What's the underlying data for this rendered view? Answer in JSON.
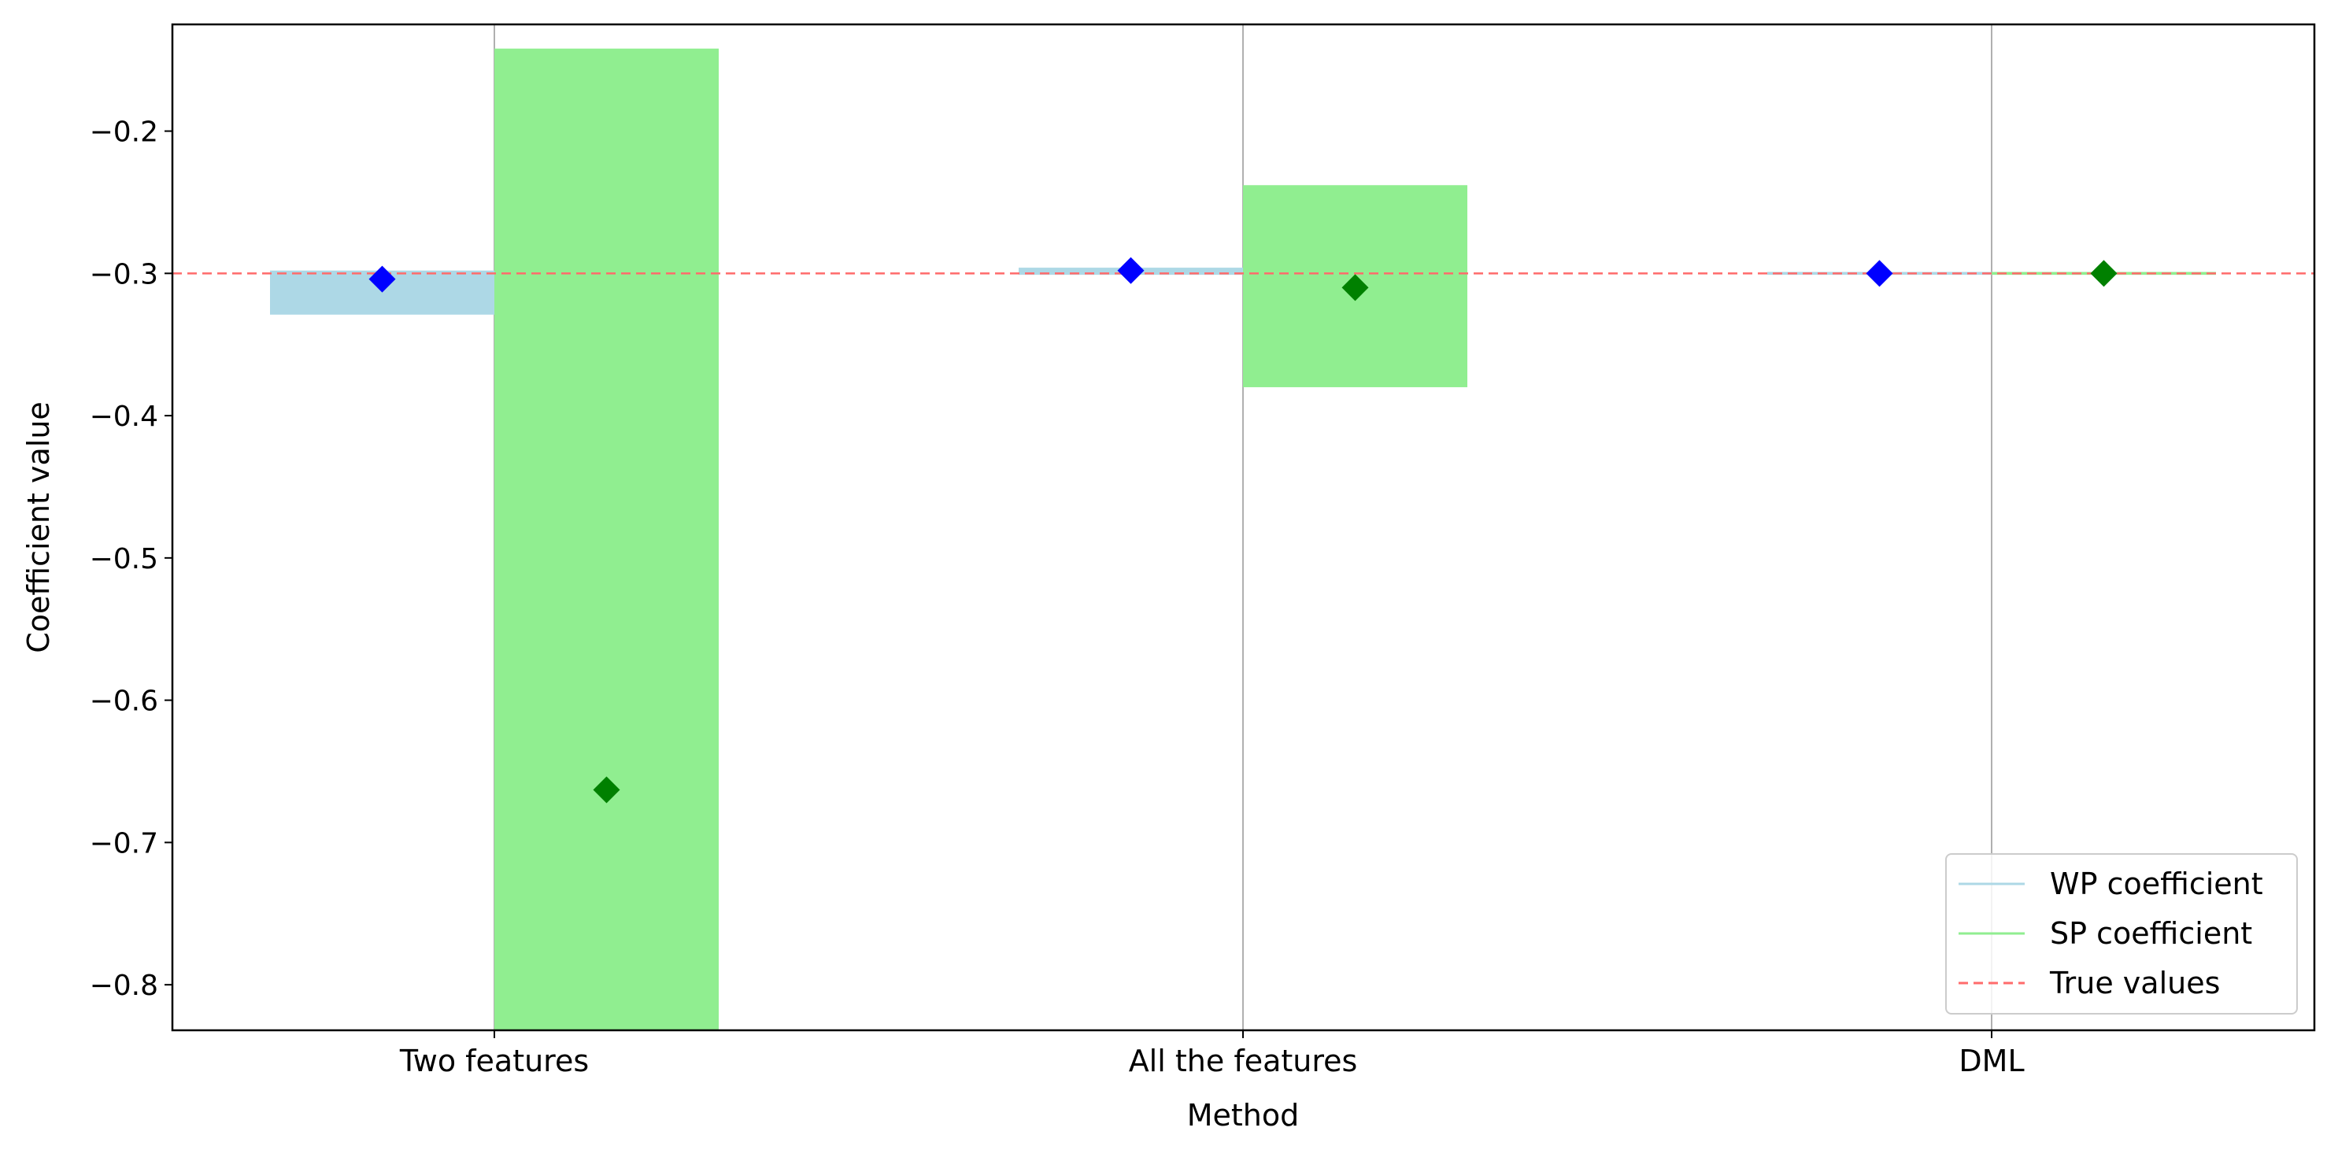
{
  "chart_data": {
    "type": "bar",
    "title": "",
    "xlabel": "Method",
    "ylabel": "Coefficient value",
    "categories": [
      "Two features",
      "All the features",
      "DML"
    ],
    "ylim": [
      -0.832,
      -0.125
    ],
    "yticks": [
      -0.2,
      -0.3,
      -0.4,
      -0.5,
      -0.6,
      -0.7,
      -0.8
    ],
    "ytick_labels": [
      "−0.2",
      "−0.3",
      "−0.4",
      "−0.5",
      "−0.6",
      "−0.7",
      "−0.8"
    ],
    "grid": "x-only",
    "true_value": -0.3,
    "series": [
      {
        "name": "WP coefficient",
        "bar_color": "#add8e6",
        "marker_color": "#0000ff",
        "intervals": [
          [
            -0.329,
            -0.298
          ],
          [
            -0.301,
            -0.296
          ],
          [
            -0.301,
            -0.299
          ]
        ],
        "estimates": [
          -0.304,
          -0.298,
          -0.3
        ]
      },
      {
        "name": "SP coefficient",
        "bar_color": "#90ee90",
        "marker_color": "#008000",
        "intervals": [
          [
            -0.832,
            -0.142
          ],
          [
            -0.38,
            -0.238
          ],
          [
            -0.301,
            -0.299
          ]
        ],
        "estimates": [
          -0.663,
          -0.31,
          -0.3
        ]
      }
    ],
    "legend": {
      "position": "lower-right",
      "entries": [
        {
          "label": "WP coefficient",
          "color": "#add8e6",
          "style": "solid"
        },
        {
          "label": "SP coefficient",
          "color": "#90ee90",
          "style": "solid"
        },
        {
          "label": "True values",
          "color": "#ff6b6b",
          "style": "dashed"
        }
      ]
    }
  }
}
